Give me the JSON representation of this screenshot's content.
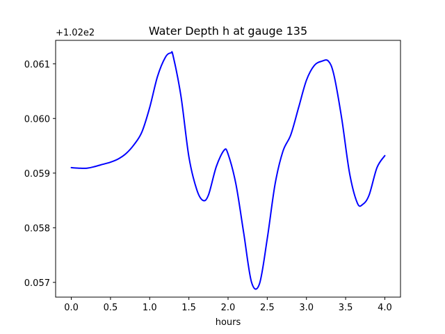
{
  "chart_data": {
    "type": "line",
    "title": "Water Depth h at gauge 135",
    "xlabel": "hours",
    "ylabel": "",
    "y_offset_text": "+1.02e2",
    "xlim": [
      -0.2,
      4.2
    ],
    "ylim": [
      0.05673,
      0.06143
    ],
    "x_ticks": [
      0.0,
      0.5,
      1.0,
      1.5,
      2.0,
      2.5,
      3.0,
      3.5,
      4.0
    ],
    "x_tick_labels": [
      "0.0",
      "0.5",
      "1.0",
      "1.5",
      "2.0",
      "2.5",
      "3.0",
      "3.5",
      "4.0"
    ],
    "y_ticks": [
      0.057,
      0.058,
      0.059,
      0.06,
      0.061
    ],
    "y_tick_labels": [
      "0.057",
      "0.058",
      "0.059",
      "0.060",
      "0.061"
    ],
    "grid": false,
    "series": [
      {
        "color": "#0000ff",
        "x": [
          0.0,
          0.1,
          0.2,
          0.3,
          0.4,
          0.5,
          0.6,
          0.7,
          0.8,
          0.9,
          1.0,
          1.1,
          1.2,
          1.27,
          1.3,
          1.4,
          1.5,
          1.6,
          1.68,
          1.75,
          1.85,
          1.95,
          2.0,
          2.1,
          2.2,
          2.3,
          2.4,
          2.5,
          2.6,
          2.7,
          2.8,
          2.9,
          3.0,
          3.1,
          3.2,
          3.28,
          3.35,
          3.45,
          3.55,
          3.65,
          3.72,
          3.8,
          3.9,
          4.0
        ],
        "y": [
          0.0591,
          0.05909,
          0.05909,
          0.05912,
          0.05916,
          0.0592,
          0.05926,
          0.05936,
          0.05952,
          0.05975,
          0.0602,
          0.06077,
          0.06112,
          0.0612,
          0.06114,
          0.0604,
          0.0593,
          0.0587,
          0.0585,
          0.0586,
          0.05912,
          0.05942,
          0.05935,
          0.0588,
          0.0579,
          0.057,
          0.05697,
          0.0578,
          0.0588,
          0.0594,
          0.0597,
          0.0602,
          0.0607,
          0.06097,
          0.06105,
          0.06105,
          0.0608,
          0.06,
          0.059,
          0.05845,
          0.05843,
          0.0586,
          0.0591,
          0.05932
        ]
      }
    ]
  }
}
